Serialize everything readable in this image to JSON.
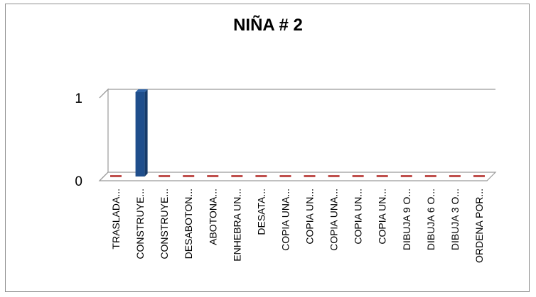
{
  "chart_data": {
    "type": "bar",
    "title": "NIÑA # 2",
    "categories": [
      "TRASLADA...",
      "CONSTRUYE...",
      "CONSTRUYE...",
      "DESABOTON...",
      "ABOTONA...",
      "ENHEBRA UN...",
      "DESATA...",
      "COPIA UNA...",
      "COPIA UN...",
      "COPIA UNA...",
      "COPIA UN...",
      "COPIA UN...",
      "DIBUJA 9 O...",
      "DIBUJA 6 O...",
      "DIBUJA 3 O...",
      "ORDENA POR..."
    ],
    "series": [
      {
        "values": [
          0,
          1,
          0,
          0,
          0,
          0,
          0,
          0,
          0,
          0,
          0,
          0,
          0,
          0,
          0,
          0
        ]
      }
    ],
    "ylim": [
      0,
      1
    ],
    "yticks": [
      "0",
      "1"
    ],
    "grid": true,
    "legend": "none",
    "bar_color": "#1f4e8c",
    "zero_marker_color": "#c0504d"
  }
}
